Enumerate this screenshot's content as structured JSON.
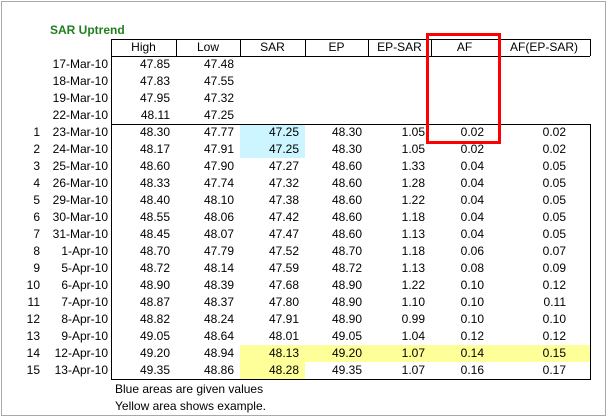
{
  "title": "SAR Uptrend",
  "headers": [
    "High",
    "Low",
    "SAR",
    "EP",
    "EP-SAR",
    "AF",
    "AF(EP-SAR)"
  ],
  "pre_rows": [
    {
      "date": "17-Mar-10",
      "high": "47.85",
      "low": "47.48"
    },
    {
      "date": "18-Mar-10",
      "high": "47.83",
      "low": "47.55"
    },
    {
      "date": "19-Mar-10",
      "high": "47.95",
      "low": "47.32"
    },
    {
      "date": "22-Mar-10",
      "high": "48.11",
      "low": "47.25"
    }
  ],
  "rows": [
    {
      "n": "1",
      "date": "23-Mar-10",
      "high": "48.30",
      "low": "47.77",
      "sar": "47.25",
      "ep": "48.30",
      "epsar": "1.05",
      "af": "0.02",
      "afepsar": "0.02"
    },
    {
      "n": "2",
      "date": "24-Mar-10",
      "high": "48.17",
      "low": "47.91",
      "sar": "47.25",
      "ep": "48.30",
      "epsar": "1.05",
      "af": "0.02",
      "afepsar": "0.02"
    },
    {
      "n": "3",
      "date": "25-Mar-10",
      "high": "48.60",
      "low": "47.90",
      "sar": "47.27",
      "ep": "48.60",
      "epsar": "1.33",
      "af": "0.04",
      "afepsar": "0.05"
    },
    {
      "n": "4",
      "date": "26-Mar-10",
      "high": "48.33",
      "low": "47.74",
      "sar": "47.32",
      "ep": "48.60",
      "epsar": "1.28",
      "af": "0.04",
      "afepsar": "0.05"
    },
    {
      "n": "5",
      "date": "29-Mar-10",
      "high": "48.40",
      "low": "48.10",
      "sar": "47.38",
      "ep": "48.60",
      "epsar": "1.22",
      "af": "0.04",
      "afepsar": "0.05"
    },
    {
      "n": "6",
      "date": "30-Mar-10",
      "high": "48.55",
      "low": "48.06",
      "sar": "47.42",
      "ep": "48.60",
      "epsar": "1.18",
      "af": "0.04",
      "afepsar": "0.05"
    },
    {
      "n": "7",
      "date": "31-Mar-10",
      "high": "48.45",
      "low": "48.07",
      "sar": "47.47",
      "ep": "48.60",
      "epsar": "1.13",
      "af": "0.04",
      "afepsar": "0.05"
    },
    {
      "n": "8",
      "date": "1-Apr-10",
      "high": "48.70",
      "low": "47.79",
      "sar": "47.52",
      "ep": "48.70",
      "epsar": "1.18",
      "af": "0.06",
      "afepsar": "0.07"
    },
    {
      "n": "9",
      "date": "5-Apr-10",
      "high": "48.72",
      "low": "48.14",
      "sar": "47.59",
      "ep": "48.72",
      "epsar": "1.13",
      "af": "0.08",
      "afepsar": "0.09"
    },
    {
      "n": "10",
      "date": "6-Apr-10",
      "high": "48.90",
      "low": "48.39",
      "sar": "47.68",
      "ep": "48.90",
      "epsar": "1.22",
      "af": "0.10",
      "afepsar": "0.12"
    },
    {
      "n": "11",
      "date": "7-Apr-10",
      "high": "48.87",
      "low": "48.37",
      "sar": "47.80",
      "ep": "48.90",
      "epsar": "1.10",
      "af": "0.10",
      "afepsar": "0.11"
    },
    {
      "n": "12",
      "date": "8-Apr-10",
      "high": "48.82",
      "low": "48.24",
      "sar": "47.91",
      "ep": "48.90",
      "epsar": "0.99",
      "af": "0.10",
      "afepsar": "0.10"
    },
    {
      "n": "13",
      "date": "9-Apr-10",
      "high": "49.05",
      "low": "48.64",
      "sar": "48.01",
      "ep": "49.05",
      "epsar": "1.04",
      "af": "0.12",
      "afepsar": "0.12"
    },
    {
      "n": "14",
      "date": "12-Apr-10",
      "high": "49.20",
      "low": "48.94",
      "sar": "48.13",
      "ep": "49.20",
      "epsar": "1.07",
      "af": "0.14",
      "afepsar": "0.15"
    },
    {
      "n": "15",
      "date": "13-Apr-10",
      "high": "49.35",
      "low": "48.86",
      "sar": "48.28",
      "ep": "49.35",
      "epsar": "1.07",
      "af": "0.16",
      "afepsar": "0.17"
    }
  ],
  "notes": [
    "Blue areas are given values",
    "Yellow area shows example."
  ],
  "colors": {
    "title": "#1f7f1f",
    "blue": "#ccf5ff",
    "yellow": "#ffff99",
    "highlight_box": "#ff0000"
  }
}
